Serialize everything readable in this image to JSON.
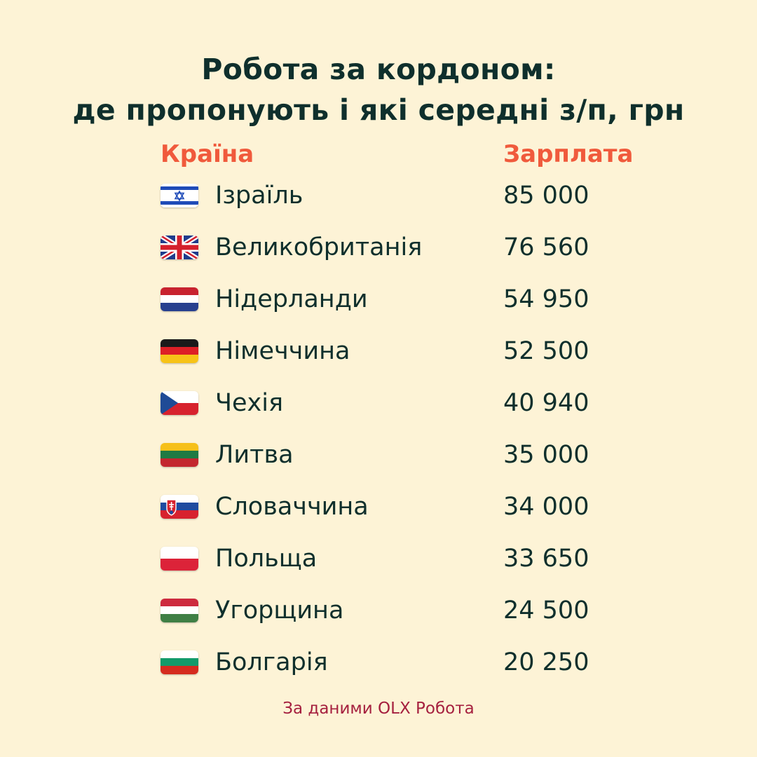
{
  "title": {
    "line1": "Робота за кордоном:",
    "line2": "де пропонують і які середні з/п, грн"
  },
  "columns": {
    "country": "Країна",
    "salary": "Зарплата"
  },
  "rows": [
    {
      "country": "Ізраїль",
      "salary": "85 000",
      "flag_icon": "israel-flag-icon"
    },
    {
      "country": "Великобританія",
      "salary": "76 560",
      "flag_icon": "uk-flag-icon"
    },
    {
      "country": "Нідерланди",
      "salary": "54 950",
      "flag_icon": "netherlands-flag-icon"
    },
    {
      "country": "Німеччина",
      "salary": "52 500",
      "flag_icon": "germany-flag-icon"
    },
    {
      "country": "Чехія",
      "salary": "40 940",
      "flag_icon": "czechia-flag-icon"
    },
    {
      "country": "Литва",
      "salary": "35 000",
      "flag_icon": "lithuania-flag-icon"
    },
    {
      "country": "Словаччина",
      "salary": "34 000",
      "flag_icon": "slovakia-flag-icon"
    },
    {
      "country": "Польща",
      "salary": "33 650",
      "flag_icon": "poland-flag-icon"
    },
    {
      "country": "Угорщина",
      "salary": "24 500",
      "flag_icon": "hungary-flag-icon"
    },
    {
      "country": "Болгарія",
      "salary": "20 250",
      "flag_icon": "bulgaria-flag-icon"
    }
  ],
  "source": "За даними OLX Робота",
  "colors": {
    "background": "#fdf3d6",
    "text": "#0f2f2c",
    "accent": "#f05a3c",
    "source": "#a5203f"
  }
}
